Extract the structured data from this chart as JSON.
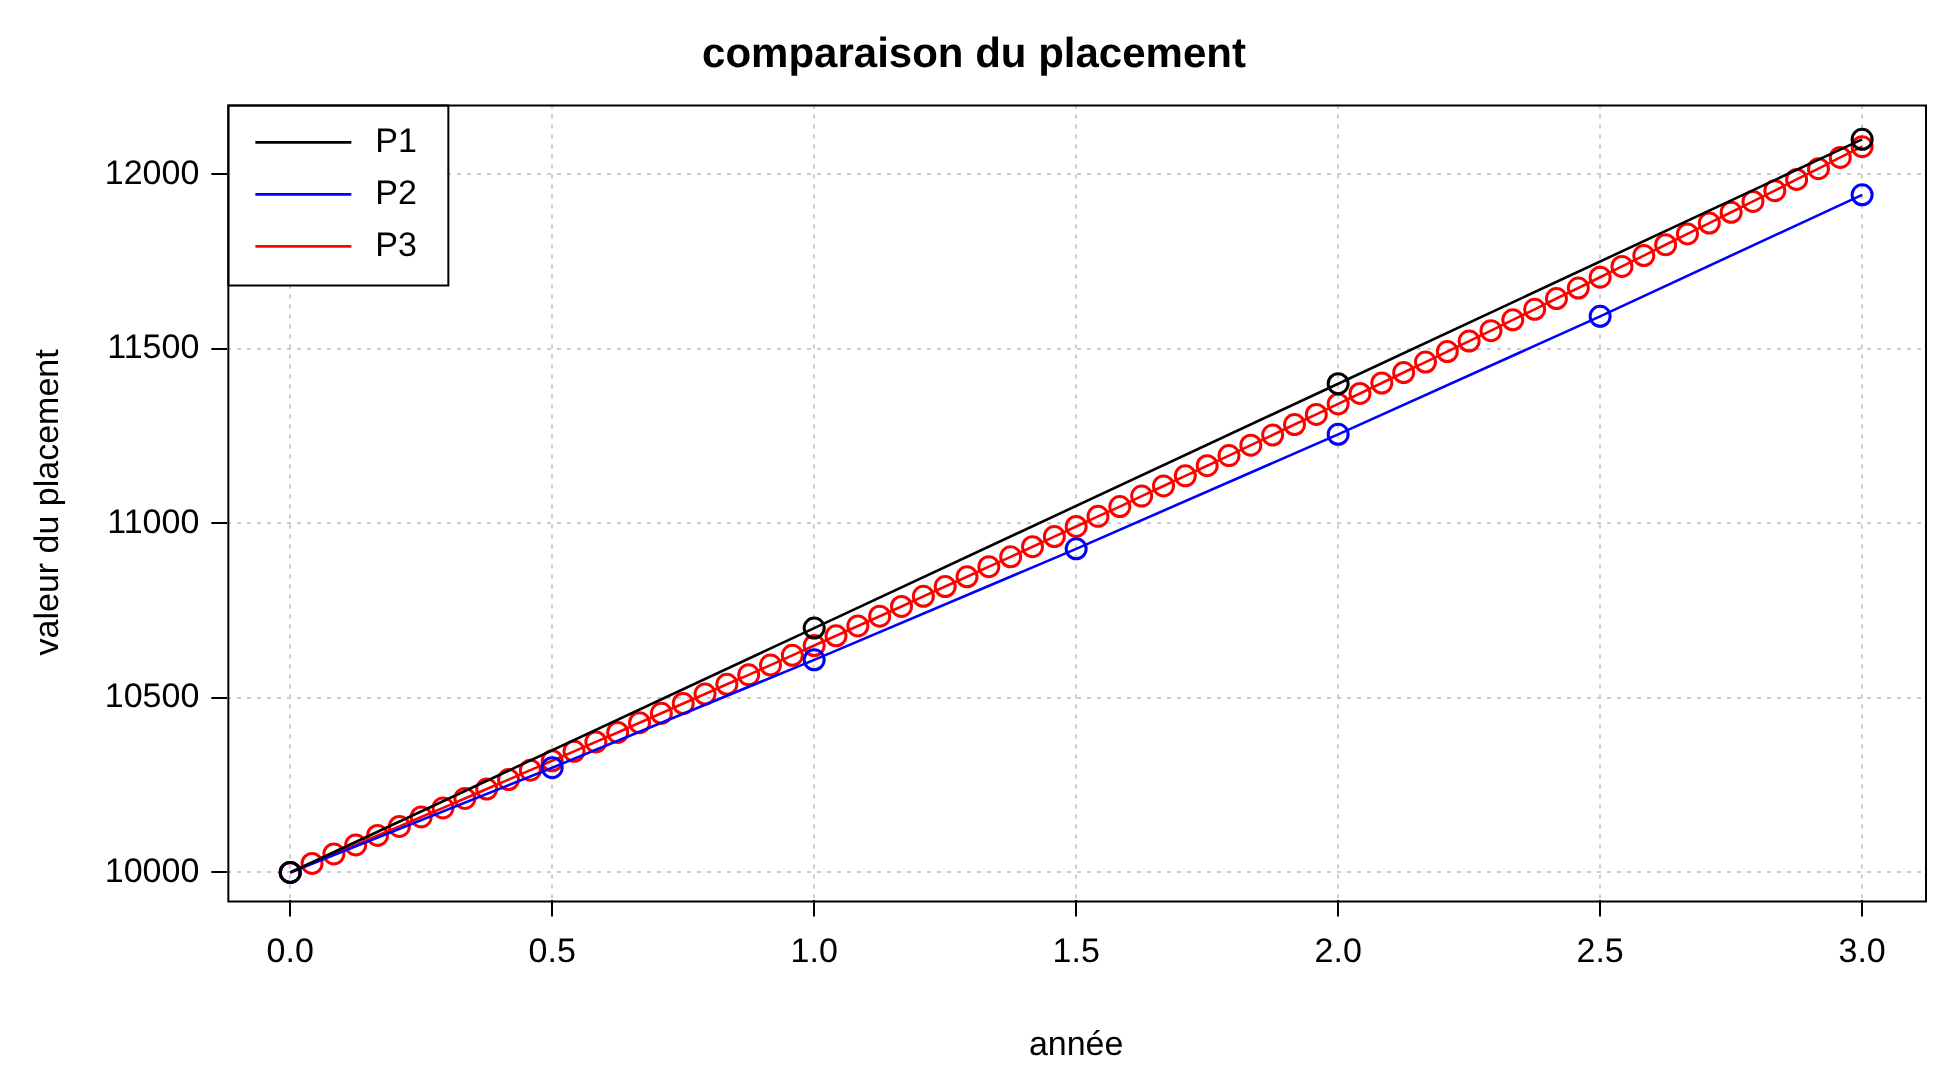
{
  "chart_data": {
    "type": "line",
    "title": "comparaison du placement",
    "xlabel": "année",
    "ylabel": "valeur du placement",
    "xlim": [
      -0.12,
      3.12
    ],
    "xticks": [
      {
        "value": 0,
        "label": "0.0"
      },
      {
        "value": 0.5,
        "label": "0.5"
      },
      {
        "value": 1,
        "label": "1.0"
      },
      {
        "value": 1.5,
        "label": "1.5"
      },
      {
        "value": 2,
        "label": "2.0"
      },
      {
        "value": 2.5,
        "label": "2.5"
      },
      {
        "value": 3,
        "label": "3.0"
      }
    ],
    "ylim": [
      9920,
      12200
    ],
    "yticks": [
      10000,
      10500,
      11000,
      11500,
      12000
    ],
    "grid": true,
    "legend": "top left",
    "marker": "circle",
    "line_style": "solid",
    "series": [
      {
        "name": "P1",
        "color": "#000000",
        "x": [
          0,
          1,
          2,
          3
        ],
        "values": [
          10000,
          10700,
          11400,
          12100
        ]
      },
      {
        "name": "P2",
        "color": "#0000ff",
        "x": [
          0,
          0.5,
          1,
          1.5,
          2,
          2.5,
          3
        ],
        "values": [
          10000,
          10300,
          10609,
          10927,
          11255,
          11593,
          11941
        ]
      },
      {
        "name": "P3",
        "color": "#ff0000",
        "x": [
          0,
          0.041667,
          0.083333,
          0.125,
          0.166667,
          0.208333,
          0.25,
          0.291667,
          0.333333,
          0.375,
          0.416667,
          0.458333,
          0.5,
          0.541667,
          0.583333,
          0.625,
          0.666667,
          0.708333,
          0.75,
          0.791667,
          0.833333,
          0.875,
          0.916667,
          0.958333,
          1,
          1.041667,
          1.083333,
          1.125,
          1.166667,
          1.208333,
          1.25,
          1.291667,
          1.333333,
          1.375,
          1.416667,
          1.458333,
          1.5,
          1.541667,
          1.583333,
          1.625,
          1.666667,
          1.708333,
          1.75,
          1.791667,
          1.833333,
          1.875,
          1.916667,
          1.958333,
          2,
          2.041667,
          2.083333,
          2.125,
          2.166667,
          2.208333,
          2.25,
          2.291667,
          2.333333,
          2.375,
          2.416667,
          2.458333,
          2.5,
          2.541667,
          2.583333,
          2.625,
          2.666667,
          2.708333,
          2.75,
          2.791667,
          2.833333,
          2.875,
          2.916667,
          2.958333,
          3
        ],
        "values": [
          10000,
          10026,
          10053,
          10079,
          10106,
          10132,
          10159,
          10185,
          10212,
          10239,
          10266,
          10293,
          10320,
          10347,
          10374,
          10401,
          10429,
          10456,
          10484,
          10511,
          10539,
          10566,
          10594,
          10622,
          10650,
          10678,
          10706,
          10734,
          10762,
          10791,
          10819,
          10847,
          10876,
          10904,
          10933,
          10962,
          10991,
          11020,
          11048,
          11078,
          11107,
          11136,
          11165,
          11194,
          11224,
          11253,
          11283,
          11312,
          11342,
          11372,
          11402,
          11432,
          11462,
          11492,
          11522,
          11552,
          11583,
          11613,
          11644,
          11674,
          11705,
          11736,
          11767,
          11798,
          11829,
          11860,
          11891,
          11922,
          11953,
          11985,
          12016,
          12048,
          12079
        ]
      }
    ]
  }
}
